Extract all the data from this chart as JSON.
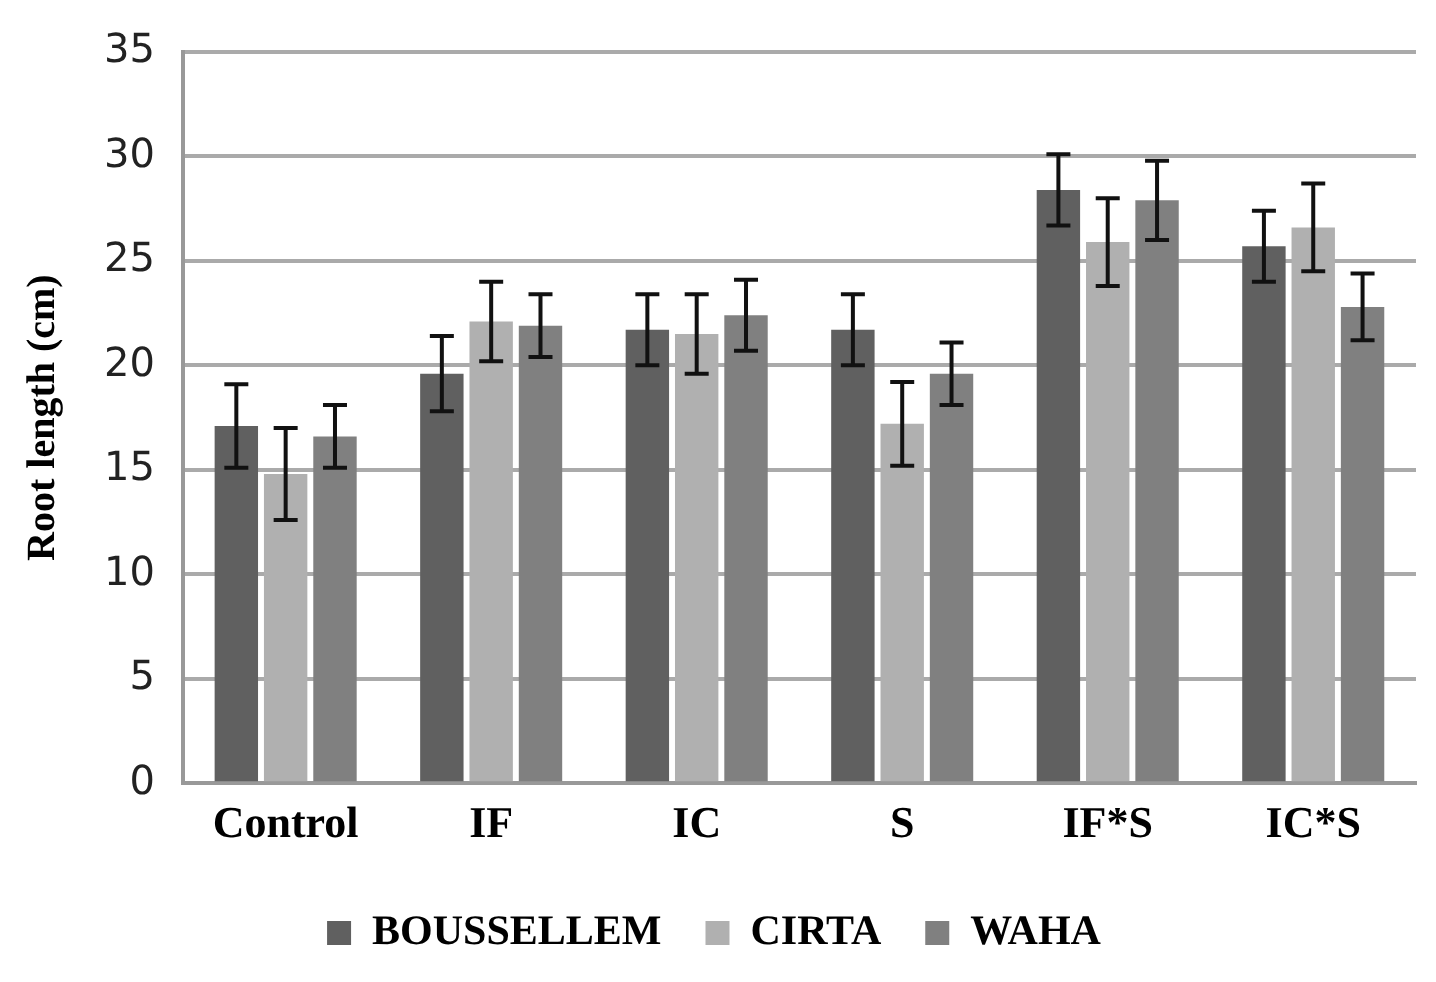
{
  "chart_data": {
    "type": "bar",
    "ylabel": "Root length (cm)",
    "categories": [
      "Control",
      "IF",
      "IC",
      "S",
      "IF*S",
      "IC*S"
    ],
    "series": [
      {
        "name": "BOUSSELLEM",
        "color": "#606060",
        "values": [
          17.1,
          19.6,
          21.7,
          21.7,
          28.4,
          25.7
        ],
        "errors": [
          2,
          1.8,
          1.7,
          1.7,
          1.7,
          1.7
        ]
      },
      {
        "name": "CIRTA",
        "color": "#b0b0b0",
        "values": [
          14.8,
          22.1,
          21.5,
          17.2,
          25.9,
          26.6
        ],
        "errors": [
          2.2,
          1.9,
          1.9,
          2,
          2.1,
          2.1
        ]
      },
      {
        "name": "WAHA",
        "color": "#808080",
        "values": [
          16.6,
          21.9,
          22.4,
          19.6,
          27.9,
          22.8
        ],
        "errors": [
          1.5,
          1.5,
          1.7,
          1.5,
          1.9,
          1.6
        ]
      }
    ],
    "ylim": [
      0,
      35
    ],
    "yticks": [
      0,
      5,
      10,
      15,
      20,
      25,
      30,
      35
    ],
    "grid": "y",
    "legend": "bottom"
  }
}
